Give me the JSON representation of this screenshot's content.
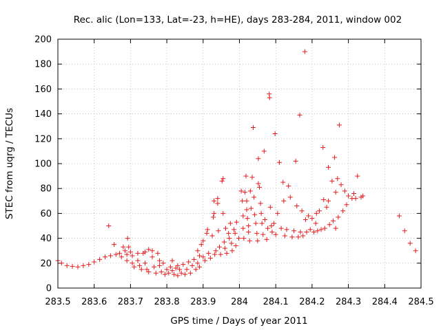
{
  "chart_data": {
    "type": "scatter",
    "title": "Rec. alic (Lon=133, Lat=-23, h=HE), days 283-284, 2011, window 002",
    "xlabel": "GPS time / Days of year 2011",
    "ylabel": "STEC from uqrg / TECUs",
    "xlim": [
      283.5,
      284.5
    ],
    "ylim": [
      0,
      200
    ],
    "x_ticks": [
      "283.5",
      "283.6",
      "283.7",
      "283.8",
      "283.9",
      "284",
      "284.1",
      "284.2",
      "284.3",
      "284.4",
      "284.5"
    ],
    "y_ticks": [
      "0",
      "20",
      "40",
      "60",
      "80",
      "100",
      "120",
      "140",
      "160",
      "180",
      "200"
    ],
    "grid": true,
    "marker": "+",
    "color": "#e41a1c",
    "points": [
      [
        283.5,
        22
      ],
      [
        283.51,
        20
      ],
      [
        283.525,
        18
      ],
      [
        283.54,
        17.5
      ],
      [
        283.555,
        17
      ],
      [
        283.57,
        18
      ],
      [
        283.585,
        19
      ],
      [
        283.6,
        21
      ],
      [
        283.615,
        23
      ],
      [
        283.63,
        25
      ],
      [
        283.64,
        50
      ],
      [
        283.645,
        26
      ],
      [
        283.655,
        35
      ],
      [
        283.66,
        27
      ],
      [
        283.67,
        28
      ],
      [
        283.675,
        25
      ],
      [
        283.68,
        33
      ],
      [
        283.685,
        30
      ],
      [
        283.69,
        27
      ],
      [
        283.69,
        22
      ],
      [
        283.692,
        40
      ],
      [
        283.695,
        33
      ],
      [
        283.7,
        29
      ],
      [
        283.705,
        26
      ],
      [
        283.705,
        20
      ],
      [
        283.71,
        17
      ],
      [
        283.72,
        28
      ],
      [
        283.72,
        22
      ],
      [
        283.725,
        18
      ],
      [
        283.73,
        15
      ],
      [
        283.735,
        28
      ],
      [
        283.74,
        29
      ],
      [
        283.74,
        20
      ],
      [
        283.745,
        15
      ],
      [
        283.75,
        31
      ],
      [
        283.75,
        13
      ],
      [
        283.76,
        30
      ],
      [
        283.76,
        25
      ],
      [
        283.765,
        17
      ],
      [
        283.77,
        12
      ],
      [
        283.775,
        28
      ],
      [
        283.78,
        22
      ],
      [
        283.78,
        18
      ],
      [
        283.785,
        13
      ],
      [
        283.79,
        20
      ],
      [
        283.795,
        11
      ],
      [
        283.8,
        15
      ],
      [
        283.805,
        12
      ],
      [
        283.81,
        17
      ],
      [
        283.815,
        22
      ],
      [
        283.815,
        14
      ],
      [
        283.82,
        11
      ],
      [
        283.825,
        16
      ],
      [
        283.83,
        10
      ],
      [
        283.83,
        18
      ],
      [
        283.835,
        15
      ],
      [
        283.84,
        12
      ],
      [
        283.845,
        19
      ],
      [
        283.85,
        11
      ],
      [
        283.855,
        15
      ],
      [
        283.86,
        21
      ],
      [
        283.865,
        12
      ],
      [
        283.87,
        18
      ],
      [
        283.875,
        23
      ],
      [
        283.88,
        15
      ],
      [
        283.885,
        30
      ],
      [
        283.885,
        20
      ],
      [
        283.89,
        26
      ],
      [
        283.89,
        17
      ],
      [
        283.895,
        35
      ],
      [
        283.9,
        25
      ],
      [
        283.9,
        38
      ],
      [
        283.905,
        22
      ],
      [
        283.91,
        44
      ],
      [
        283.912,
        47
      ],
      [
        283.915,
        28
      ],
      [
        283.92,
        24
      ],
      [
        283.925,
        42
      ],
      [
        283.928,
        57
      ],
      [
        283.93,
        70
      ],
      [
        283.93,
        60
      ],
      [
        283.932,
        27
      ],
      [
        283.935,
        30
      ],
      [
        283.94,
        72
      ],
      [
        283.94,
        68
      ],
      [
        283.942,
        46
      ],
      [
        283.945,
        33
      ],
      [
        283.948,
        27
      ],
      [
        283.952,
        86
      ],
      [
        283.955,
        88
      ],
      [
        283.955,
        60
      ],
      [
        283.958,
        37
      ],
      [
        283.96,
        32
      ],
      [
        283.962,
        48
      ],
      [
        283.965,
        28
      ],
      [
        283.97,
        44
      ],
      [
        283.972,
        40
      ],
      [
        283.975,
        52
      ],
      [
        283.978,
        36
      ],
      [
        283.98,
        30
      ],
      [
        283.985,
        47
      ],
      [
        283.988,
        44
      ],
      [
        283.99,
        34
      ],
      [
        283.992,
        53
      ],
      [
        283.998,
        40
      ],
      [
        284.005,
        78
      ],
      [
        284.008,
        70
      ],
      [
        284.01,
        58
      ],
      [
        284.01,
        48
      ],
      [
        284.012,
        40
      ],
      [
        284.015,
        77
      ],
      [
        284.018,
        90
      ],
      [
        284.02,
        70
      ],
      [
        284.02,
        63
      ],
      [
        284.022,
        56
      ],
      [
        284.025,
        50
      ],
      [
        284.025,
        45
      ],
      [
        284.028,
        38
      ],
      [
        284.03,
        78
      ],
      [
        284.032,
        64
      ],
      [
        284.035,
        89
      ],
      [
        284.038,
        129
      ],
      [
        284.04,
        73
      ],
      [
        284.042,
        59
      ],
      [
        284.045,
        52
      ],
      [
        284.048,
        44
      ],
      [
        284.05,
        38
      ],
      [
        284.052,
        104
      ],
      [
        284.052,
        84
      ],
      [
        284.055,
        81
      ],
      [
        284.058,
        68
      ],
      [
        284.06,
        60
      ],
      [
        284.062,
        52
      ],
      [
        284.065,
        43
      ],
      [
        284.068,
        110
      ],
      [
        284.07,
        55
      ],
      [
        284.075,
        39
      ],
      [
        284.078,
        48
      ],
      [
        284.082,
        156
      ],
      [
        284.083,
        153
      ],
      [
        284.085,
        65
      ],
      [
        284.088,
        50
      ],
      [
        284.09,
        45
      ],
      [
        284.095,
        52
      ],
      [
        284.098,
        124
      ],
      [
        284.1,
        43
      ],
      [
        284.105,
        60
      ],
      [
        284.11,
        101
      ],
      [
        284.115,
        48
      ],
      [
        284.12,
        85
      ],
      [
        284.122,
        70
      ],
      [
        284.125,
        42
      ],
      [
        284.13,
        47
      ],
      [
        284.135,
        82
      ],
      [
        284.14,
        73
      ],
      [
        284.145,
        41
      ],
      [
        284.15,
        46
      ],
      [
        284.155,
        102
      ],
      [
        284.158,
        66
      ],
      [
        284.162,
        41
      ],
      [
        284.166,
        139
      ],
      [
        284.168,
        45
      ],
      [
        284.172,
        62
      ],
      [
        284.175,
        42
      ],
      [
        284.18,
        190
      ],
      [
        284.182,
        55
      ],
      [
        284.185,
        45
      ],
      [
        284.19,
        58
      ],
      [
        284.195,
        47
      ],
      [
        284.2,
        56
      ],
      [
        284.205,
        45
      ],
      [
        284.21,
        52
      ],
      [
        284.212,
        60
      ],
      [
        284.215,
        46
      ],
      [
        284.22,
        62
      ],
      [
        284.225,
        47
      ],
      [
        284.23,
        113
      ],
      [
        284.232,
        71
      ],
      [
        284.235,
        48
      ],
      [
        284.24,
        65
      ],
      [
        284.245,
        97
      ],
      [
        284.245,
        70
      ],
      [
        284.248,
        51
      ],
      [
        284.255,
        86
      ],
      [
        284.258,
        54
      ],
      [
        284.262,
        105
      ],
      [
        284.265,
        77
      ],
      [
        284.265,
        48
      ],
      [
        284.27,
        88
      ],
      [
        284.272,
        57
      ],
      [
        284.275,
        131
      ],
      [
        284.28,
        83
      ],
      [
        284.285,
        62
      ],
      [
        284.29,
        78
      ],
      [
        284.295,
        67
      ],
      [
        284.3,
        74
      ],
      [
        284.31,
        72
      ],
      [
        284.315,
        76
      ],
      [
        284.32,
        72
      ],
      [
        284.325,
        90
      ],
      [
        284.335,
        73
      ],
      [
        284.34,
        74
      ],
      [
        284.44,
        58
      ],
      [
        284.455,
        46
      ],
      [
        284.47,
        36
      ],
      [
        284.485,
        30
      ]
    ]
  }
}
